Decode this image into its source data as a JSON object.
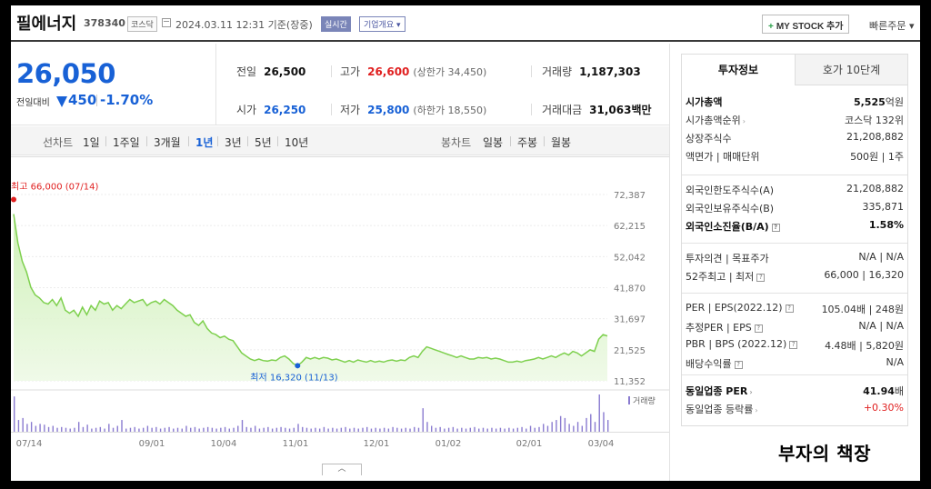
{
  "header": {
    "stock_name": "필에너지",
    "stock_code": "378340",
    "market_badge": "코스닥",
    "timestamp": "2024.03.11 12:31 기준(장중)",
    "realtime_badge": "실시간",
    "company_overview_button": "기업개요 ▾",
    "mystock_button": "MY STOCK 추가",
    "quick_order": "빠른주문 ▾"
  },
  "price": {
    "current": "26,050",
    "change_label": "전일대비",
    "change_amount": "450",
    "change_pct": "-1.70%",
    "direction": "down"
  },
  "stats": {
    "prev_close_label": "전일",
    "prev_close": "26,500",
    "high_label": "고가",
    "high": "26,600",
    "upper_limit": "(상한가 34,450)",
    "volume_label": "거래량",
    "volume": "1,187,303",
    "open_label": "시가",
    "open": "26,250",
    "low_label": "저가",
    "low": "25,800",
    "lower_limit": "(하한가 18,550)",
    "trade_value_label": "거래대금",
    "trade_value": "31,063",
    "trade_value_unit": "백만"
  },
  "period_bar": {
    "line_chart_label": "선차트",
    "periods": [
      "1일",
      "1주일",
      "3개월",
      "1년",
      "3년",
      "5년",
      "10년"
    ],
    "active_period": "1년",
    "candle_chart_label": "봉차트",
    "candle_periods": [
      "일봉",
      "주봉",
      "월봉"
    ]
  },
  "chart_data": {
    "type": "area",
    "x_ticks": [
      "07/14",
      "09/01",
      "10/04",
      "11/01",
      "12/01",
      "01/02",
      "02/01",
      "03/04"
    ],
    "y_ticks": [
      72387,
      62215,
      52042,
      41870,
      31697,
      21525,
      11352
    ],
    "y_tick_labels": [
      "72,387",
      "62,215",
      "52,042",
      "41,870",
      "31,697",
      "21,525",
      "11,352"
    ],
    "ylim": [
      11352,
      72387
    ],
    "high_annotation": "최고 66,000 (07/14)",
    "low_annotation": "최저 16,320 (11/13)",
    "volume_label": "거래량",
    "price_values": [
      66000,
      56500,
      50500,
      47000,
      42000,
      39500,
      38500,
      37000,
      36500,
      38000,
      36000,
      38500,
      34500,
      33500,
      34500,
      32500,
      35500,
      33000,
      36000,
      34500,
      37500,
      36500,
      37000,
      34500,
      36000,
      35000,
      36500,
      38000,
      37000,
      37500,
      38000,
      36000,
      37000,
      37500,
      36500,
      38000,
      37000,
      36000,
      34500,
      33500,
      32500,
      33000,
      30500,
      29500,
      31000,
      28500,
      27000,
      26500,
      25500,
      26000,
      25000,
      24500,
      22500,
      20500,
      19500,
      18500,
      18000,
      18500,
      18000,
      17800,
      18200,
      18000,
      19000,
      19500,
      18500,
      17000,
      16320,
      17500,
      19000,
      18500,
      19000,
      18500,
      19000,
      18800,
      18200,
      18500,
      18000,
      17500,
      18000,
      17500,
      18200,
      17800,
      17500,
      18000,
      17500,
      17800,
      17500,
      18000,
      18200,
      17800,
      18200,
      18000,
      19000,
      19500,
      19000,
      21000,
      22500,
      22000,
      21500,
      21000,
      20500,
      20000,
      19500,
      19000,
      19500,
      19000,
      18500,
      18500,
      19000,
      18800,
      19000,
      18500,
      18800,
      18500,
      18000,
      17500,
      17500,
      17800,
      17500,
      18000,
      18200,
      18500,
      19000,
      18500,
      19000,
      19500,
      19000,
      19800,
      20500,
      19800,
      21000,
      20500,
      19500,
      20500,
      21500,
      21000,
      25000,
      26500,
      26050
    ],
    "volume_values": [
      90,
      30,
      35,
      20,
      25,
      15,
      20,
      18,
      12,
      15,
      10,
      12,
      10,
      8,
      10,
      25,
      12,
      18,
      8,
      10,
      12,
      8,
      20,
      10,
      15,
      30,
      8,
      10,
      12,
      8,
      10,
      15,
      10,
      12,
      8,
      10,
      12,
      8,
      10,
      8,
      15,
      10,
      12,
      8,
      10,
      12,
      10,
      8,
      10,
      12,
      8,
      10,
      15,
      30,
      12,
      10,
      15,
      8,
      10,
      12,
      8,
      10,
      12,
      10,
      8,
      10,
      20,
      12,
      10,
      8,
      10,
      8,
      12,
      8,
      10,
      8,
      10,
      12,
      8,
      10,
      8,
      10,
      12,
      8,
      10,
      8,
      10,
      8,
      12,
      10,
      8,
      10,
      8,
      12,
      10,
      60,
      25,
      15,
      10,
      12,
      8,
      10,
      12,
      8,
      10,
      8,
      10,
      12,
      8,
      10,
      8,
      10,
      8,
      10,
      8,
      10,
      8,
      10,
      12,
      8,
      15,
      10,
      12,
      20,
      15,
      25,
      30,
      40,
      35,
      20,
      15,
      25,
      15,
      35,
      45,
      25,
      95,
      50,
      30
    ]
  },
  "right_panel": {
    "tabs": [
      "투자정보",
      "호가 10단계"
    ],
    "g1": [
      {
        "k": "시가총액",
        "v": "5,525",
        "unit": "억원"
      },
      {
        "k": "시가총액순위",
        "v": "코스닥 132위"
      },
      {
        "k": "상장주식수",
        "v": "21,208,882"
      },
      {
        "k": "액면가 | 매매단위",
        "v": "500원 | 1주"
      }
    ],
    "g2": [
      {
        "k": "외국인한도주식수(A)",
        "v": "21,208,882"
      },
      {
        "k": "외국인보유주식수(B)",
        "v": "335,871"
      },
      {
        "k": "외국인소진율(B/A)",
        "v": "1.58%"
      }
    ],
    "g3": [
      {
        "k": "투자의견 | 목표주가",
        "v": "N/A | N/A"
      },
      {
        "k": "52주최고 | 최저",
        "v": "66,000 | 16,320"
      }
    ],
    "g4": [
      {
        "k": "PER | EPS(2022.12)",
        "v": "105.04배 | 248원"
      },
      {
        "k": "추정PER | EPS",
        "v": "N/A | N/A"
      },
      {
        "k": "PBR | BPS (2022.12)",
        "v": "4.48배 | 5,820원"
      },
      {
        "k": "배당수익률",
        "v": "N/A"
      }
    ],
    "g5": [
      {
        "k": "동일업종 PER",
        "v": "41.94",
        "unit": "배"
      },
      {
        "k": "동일업종 등락률",
        "v": "+0.30%"
      }
    ]
  },
  "watermark": "부자의 책장",
  "colors": {
    "price_down": "#1861d6",
    "price_up": "#e02020",
    "line": "#7ed04e",
    "volume": "#8a7bd0"
  }
}
